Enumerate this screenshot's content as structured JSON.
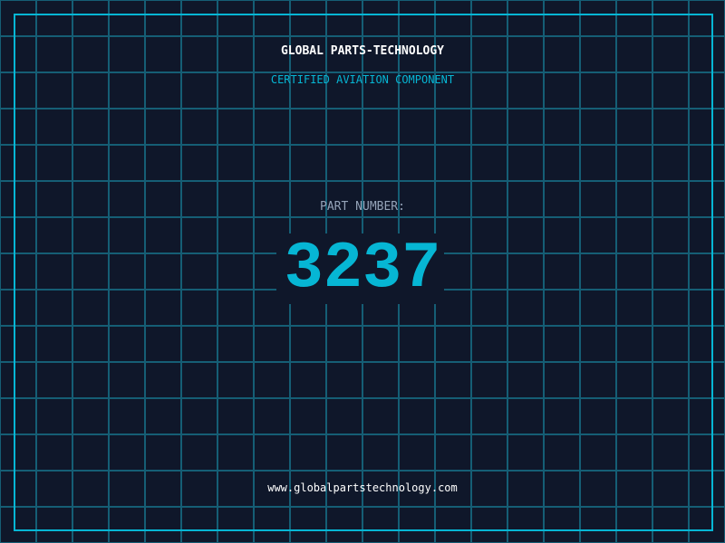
{
  "header": {
    "company": "GLOBAL PARTS-TECHNOLOGY",
    "subtitle": "CERTIFIED AVIATION COMPONENT"
  },
  "part": {
    "label": "PART NUMBER:",
    "number": "3237"
  },
  "footer": {
    "url": "www.globalpartstechnology.com"
  },
  "colors": {
    "background": "#0f172a",
    "accent": "#06b6d4",
    "grid": "#155e75",
    "label": "#94a3b8"
  }
}
